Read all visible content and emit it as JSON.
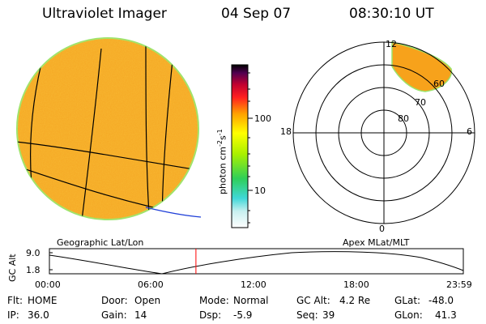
{
  "header": {
    "instrument": "Ultraviolet Imager",
    "date": "04 Sep 07",
    "time": "08:30:10 UT"
  },
  "left_panel": {
    "label": "Geographic Lat/Lon"
  },
  "right_panel": {
    "label": "Apex MLat/MLT",
    "mlt_labels": {
      "top": "12",
      "right": "6",
      "bottom": "0",
      "left": "18"
    },
    "lat_labels": [
      "60",
      "70",
      "80"
    ]
  },
  "colorbar": {
    "label": "photon cm",
    "label_sup1": "-2",
    "label_mid": "s",
    "label_sup2": "-1",
    "ticks": [
      "100",
      "10"
    ]
  },
  "altitude_plot": {
    "ylabel": "GC Alt",
    "y_ticks": [
      "9.0",
      "1.8"
    ],
    "x_ticks": [
      "00:00",
      "06:00",
      "12:00",
      "18:00",
      "23:59"
    ],
    "current_time_fraction": 0.354
  },
  "info": {
    "flt_label": "Flt:",
    "flt_value": "HOME",
    "door_label": "Door:",
    "door_value": "Open",
    "mode_label": "Mode:",
    "mode_value": "Normal",
    "gcalt_label": "GC Alt:",
    "gcalt_value": "4.2 Re",
    "glat_label": "GLat:",
    "glat_value": "-48.0",
    "ip_label": "IP:",
    "ip_value": "36.0",
    "gain_label": "Gain:",
    "gain_value": "14",
    "dsp_label": "Dsp:",
    "dsp_value": "-5.9",
    "seq_label": "Seq:",
    "seq_value": "39",
    "glon_label": "GLon:",
    "glon_value": "41.3"
  },
  "colors": {
    "disk_fill": "#f5a623",
    "disk_edge": "#9be36b",
    "oval_fill": "#f7a21b",
    "time_marker": "#ff0000",
    "track_blue": "#1f3fd8"
  }
}
